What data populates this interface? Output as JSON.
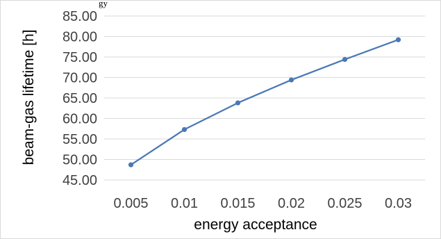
{
  "top_fragment": "gy",
  "chart_data": {
    "type": "line",
    "title": "",
    "xlabel": "energy acceptance",
    "ylabel": "beam-gas lifetime [h]",
    "x": [
      0.005,
      0.01,
      0.015,
      0.02,
      0.025,
      0.03
    ],
    "x_tick_labels": [
      "0.005",
      "0.01",
      "0.015",
      "0.02",
      "0.025",
      "0.03"
    ],
    "y_tick_labels": [
      "85.00",
      "80.00",
      "75.00",
      "70.00",
      "65.00",
      "60.00",
      "55.00",
      "50.00",
      "45.00"
    ],
    "ylim": [
      45,
      85
    ],
    "grid": true,
    "legend": "none",
    "series": [
      {
        "values": [
          48.7,
          57.3,
          63.8,
          69.4,
          74.4,
          79.2
        ],
        "color": "#4a78b5"
      }
    ]
  }
}
